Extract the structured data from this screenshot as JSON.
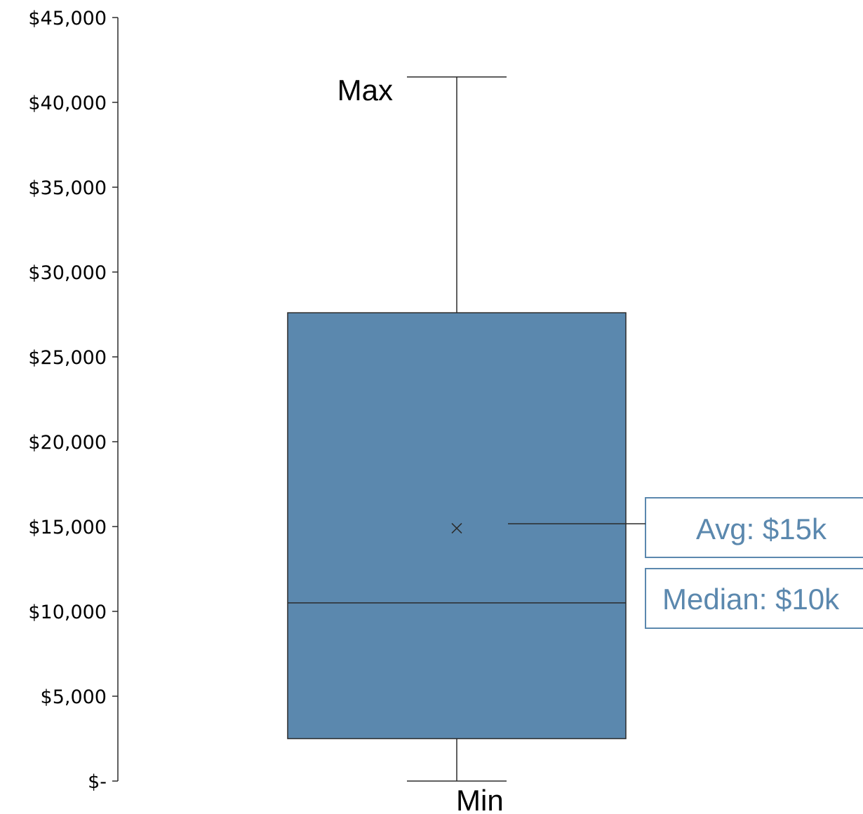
{
  "chart_data": {
    "type": "box",
    "title": "",
    "xlabel": "",
    "ylabel": "",
    "ylim": [
      0,
      45000
    ],
    "y_ticks": [
      0,
      5000,
      10000,
      15000,
      20000,
      25000,
      30000,
      35000,
      40000,
      45000
    ],
    "y_tick_labels": [
      "$-",
      "$5,000",
      "$10,000",
      "$15,000",
      "$20,000",
      "$25,000",
      "$30,000",
      "$35,000",
      "$40,000",
      "$45,000"
    ],
    "box": {
      "min": 0,
      "q1": 2500,
      "median": 10500,
      "mean": 14900,
      "q3": 27600,
      "max": 41500
    },
    "annotations": {
      "max_label": "Max",
      "min_label": "Min",
      "avg_callout": "Avg: $15k",
      "median_callout": "Median: $10k"
    },
    "colors": {
      "box_fill": "#5b88ae",
      "box_edge": "#2b2b2b",
      "axis": "#2b2b2b",
      "callout": "#5b88ae"
    },
    "grid": false,
    "legend": "none"
  }
}
